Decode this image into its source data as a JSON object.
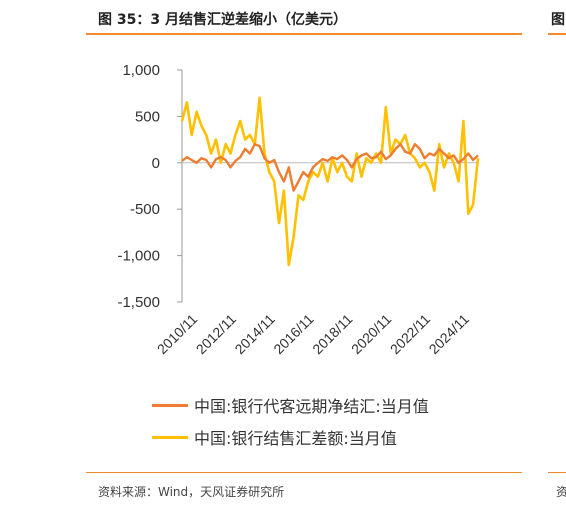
{
  "header": {
    "title": "图 35：3 月结售汇逆差缩小（亿美元）",
    "right_clip": "图"
  },
  "footer": {
    "source": "资料来源：Wind，天风证券研究所",
    "right_clip": "资"
  },
  "colors": {
    "accent": "#f08a2c",
    "series1": "#ed7d31",
    "series2": "#ffc000"
  },
  "chart_data": {
    "type": "line",
    "title": "",
    "xlabel": "",
    "ylabel": "",
    "ylim": [
      -1500,
      1000
    ],
    "yticks": [
      1000,
      500,
      0,
      -500,
      -1000,
      -1500
    ],
    "ytick_labels": [
      "1,000",
      "500",
      "0",
      "-500",
      "-1,000",
      "-1,500"
    ],
    "xticks": [
      "2010/11",
      "2012/11",
      "2014/11",
      "2016/11",
      "2018/11",
      "2020/11",
      "2022/11",
      "2024/11"
    ],
    "xtick_values": [
      2010.83,
      2012.83,
      2014.83,
      2016.83,
      2018.83,
      2020.83,
      2022.83,
      2024.83
    ],
    "xlim": [
      2010.0,
      2025.25
    ],
    "grid": false,
    "legend": "bottom",
    "series": [
      {
        "name": "中国:银行代客远期净结汇:当月值",
        "color": "#ed7d31",
        "x": [
          2010.0,
          2010.25,
          2010.5,
          2010.75,
          2011.0,
          2011.25,
          2011.5,
          2011.75,
          2012.0,
          2012.25,
          2012.5,
          2012.75,
          2013.0,
          2013.25,
          2013.5,
          2013.75,
          2014.0,
          2014.25,
          2014.5,
          2014.75,
          2015.0,
          2015.25,
          2015.5,
          2015.75,
          2016.0,
          2016.25,
          2016.5,
          2016.75,
          2017.0,
          2017.25,
          2017.5,
          2017.75,
          2018.0,
          2018.25,
          2018.5,
          2018.75,
          2019.0,
          2019.25,
          2019.5,
          2019.75,
          2020.0,
          2020.25,
          2020.5,
          2020.75,
          2021.0,
          2021.25,
          2021.5,
          2021.75,
          2022.0,
          2022.25,
          2022.5,
          2022.75,
          2023.0,
          2023.25,
          2023.5,
          2023.75,
          2024.0,
          2024.25,
          2024.5,
          2024.75,
          2025.0,
          2025.25
        ],
        "values": [
          20,
          60,
          30,
          0,
          50,
          30,
          -50,
          40,
          60,
          30,
          -50,
          20,
          60,
          150,
          100,
          200,
          180,
          50,
          0,
          30,
          -100,
          -200,
          -50,
          -300,
          -200,
          -100,
          -150,
          -50,
          0,
          40,
          20,
          60,
          40,
          80,
          30,
          -50,
          40,
          80,
          100,
          50,
          60,
          120,
          40,
          80,
          150,
          200,
          120,
          100,
          200,
          150,
          50,
          100,
          80,
          150,
          100,
          50,
          80,
          0,
          40,
          100,
          30,
          80
        ]
      },
      {
        "name": "中国:银行结售汇差额:当月值",
        "color": "#ffc000",
        "x": [
          2010.0,
          2010.25,
          2010.5,
          2010.75,
          2011.0,
          2011.25,
          2011.5,
          2011.75,
          2012.0,
          2012.25,
          2012.5,
          2012.75,
          2013.0,
          2013.25,
          2013.5,
          2013.75,
          2014.0,
          2014.25,
          2014.5,
          2014.75,
          2015.0,
          2015.25,
          2015.5,
          2015.75,
          2016.0,
          2016.25,
          2016.5,
          2016.75,
          2017.0,
          2017.25,
          2017.5,
          2017.75,
          2018.0,
          2018.25,
          2018.5,
          2018.75,
          2019.0,
          2019.25,
          2019.5,
          2019.75,
          2020.0,
          2020.25,
          2020.5,
          2020.75,
          2021.0,
          2021.25,
          2021.5,
          2021.75,
          2022.0,
          2022.25,
          2022.5,
          2022.75,
          2023.0,
          2023.25,
          2023.5,
          2023.75,
          2024.0,
          2024.25,
          2024.5,
          2024.75,
          2025.0,
          2025.25
        ],
        "values": [
          450,
          650,
          300,
          550,
          400,
          300,
          100,
          250,
          0,
          200,
          100,
          300,
          450,
          250,
          300,
          200,
          700,
          100,
          -100,
          -200,
          -650,
          -300,
          -1100,
          -800,
          -350,
          -400,
          -200,
          -100,
          -150,
          0,
          -200,
          50,
          -100,
          0,
          -150,
          -200,
          100,
          -150,
          50,
          0,
          100,
          0,
          600,
          100,
          250,
          200,
          300,
          100,
          50,
          -50,
          0,
          -100,
          -300,
          200,
          -50,
          100,
          0,
          -200,
          450,
          -550,
          -450,
          50
        ]
      }
    ]
  }
}
